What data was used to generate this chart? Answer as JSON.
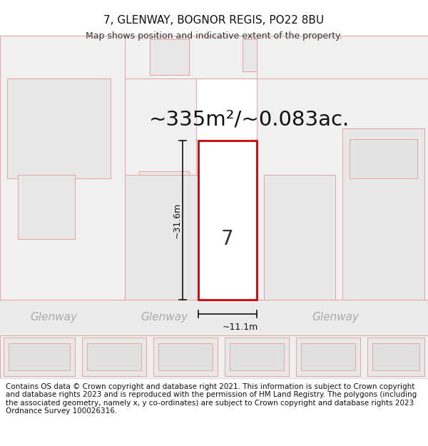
{
  "title": "7, GLENWAY, BOGNOR REGIS, PO22 8BU",
  "subtitle": "Map shows position and indicative extent of the property.",
  "area_label": "~335m²/~0.083ac.",
  "plot_number": "7",
  "width_label": "~11.1m",
  "height_label": "~31.6m",
  "footer_text": "Contains OS data © Crown copyright and database right 2021. This information is subject to Crown copyright and database rights 2023 and is reproduced with the permission of HM Land Registry. The polygons (including the associated geometry, namely x, y co-ordinates) are subject to Crown copyright and database rights 2023 Ordnance Survey 100026316.",
  "map_bg": "#f7f7f7",
  "road_bg": "#ebebeb",
  "plot_fill": "#ffffff",
  "plot_border": "#cc0000",
  "plot_border_lw": 2.0,
  "neighbor_fill": "#f0f0f0",
  "neighbor_fill2": "#e8e8e8",
  "neighbor_border": "#e8a0a0",
  "neighbor_border_lw": 0.7,
  "road_label_color": "#aaaaaa",
  "dim_color": "#111111",
  "title_fontsize": 11,
  "subtitle_fontsize": 9,
  "area_fontsize": 21,
  "plot_num_fontsize": 20,
  "dim_fontsize": 9,
  "road_label_fontsize": 11,
  "footer_fontsize": 7.5
}
